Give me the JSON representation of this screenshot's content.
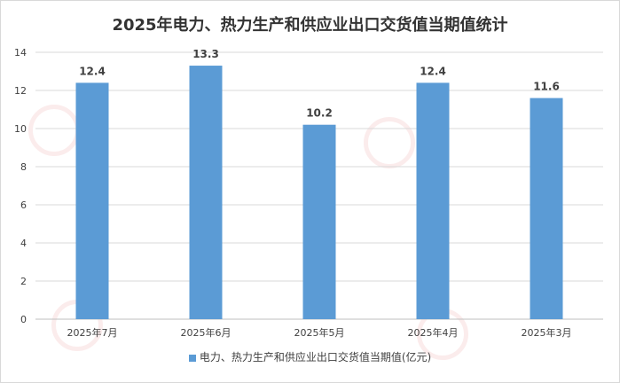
{
  "title": "2025年电力、热力生产和供应业出口交货值当期值统计",
  "colors": {
    "bar": "#5b9bd5",
    "grid": "#d9d9d9",
    "axis": "#bfbfbf"
  },
  "chart_data": {
    "type": "bar",
    "title": "2025年电力、热力生产和供应业出口交货值当期值统计",
    "categories": [
      "2025年7月",
      "2025年6月",
      "2025年5月",
      "2025年4月",
      "2025年3月"
    ],
    "series": [
      {
        "name": "电力、热力生产和供应业出口交货值当期值(亿元)",
        "values": [
          12.4,
          13.3,
          10.2,
          12.4,
          11.6
        ]
      }
    ],
    "data_labels": [
      "12.4",
      "13.3",
      "10.2",
      "12.4",
      "11.6"
    ],
    "ylim": [
      0,
      14
    ],
    "yticks": [
      "0",
      "2",
      "4",
      "6",
      "8",
      "10",
      "12",
      "14"
    ],
    "grid": true,
    "legend": "bottom"
  },
  "legend_label": "电力、热力生产和供应业出口交货值当期值(亿元)"
}
